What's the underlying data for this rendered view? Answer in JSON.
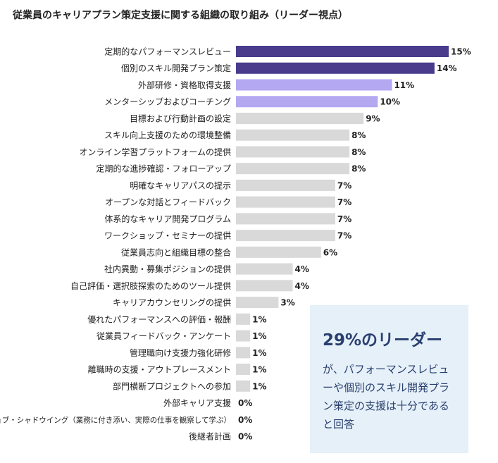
{
  "chart_data": {
    "type": "bar",
    "orientation": "horizontal",
    "title": "従業員のキャリアプラン策定支援に関する組織の取り組み（リーダー視点）",
    "categories": [
      "定期的なパフォーマンスレビュー",
      "個別のスキル開発プラン策定",
      "外部研修・資格取得支援",
      "メンターシップおよびコーチング",
      "目標および行動計画の設定",
      "スキル向上支援のための環境整備",
      "オンライン学習プラットフォームの提供",
      "定期的な進捗確認・フォローアップ",
      "明確なキャリアパスの提示",
      "オープンな対話とフィードバック",
      "体系的なキャリア開発プログラム",
      "ワークショップ・セミナーの提供",
      "従業員志向と組織目標の整合",
      "社内異動・募集ポジションの提供",
      "自己評価・選択肢探索のためのツール提供",
      "キャリアカウンセリングの提供",
      "優れたパフォーマンスへの評価・報酬",
      "従業員フィードバック・アンケート",
      "管理職向け支援力強化研修",
      "離職時の支援・アウトプレースメント",
      "部門横断プロジェクトへの参加",
      "外部キャリア支援",
      "ジョブ・シャドウイング（業務に付き添い、実際の仕事を観察して学ぶ）",
      "後継者計画"
    ],
    "values": [
      15,
      14,
      11,
      10,
      9,
      8,
      8,
      8,
      7,
      7,
      7,
      7,
      6,
      4,
      4,
      3,
      1,
      1,
      1,
      1,
      1,
      0,
      0,
      0
    ],
    "value_labels": [
      "15%",
      "14%",
      "11%",
      "10%",
      "9%",
      "8%",
      "8%",
      "8%",
      "7%",
      "7%",
      "7%",
      "7%",
      "6%",
      "4%",
      "4%",
      "3%",
      "1%",
      "1%",
      "1%",
      "1%",
      "1%",
      "0%",
      "0%",
      "0%"
    ],
    "colors": [
      "#4a3b8c",
      "#4a3b8c",
      "#b4a9f1",
      "#b4a9f1",
      "#d9d9d9",
      "#d9d9d9",
      "#d9d9d9",
      "#d9d9d9",
      "#d9d9d9",
      "#d9d9d9",
      "#d9d9d9",
      "#d9d9d9",
      "#d9d9d9",
      "#d9d9d9",
      "#d9d9d9",
      "#d9d9d9",
      "#d9d9d9",
      "#d9d9d9",
      "#d9d9d9",
      "#d9d9d9",
      "#d9d9d9",
      "#d9d9d9",
      "#d9d9d9",
      "#d9d9d9"
    ],
    "annotation": {
      "title": "29%のリーダー",
      "text": "が、パフォーマンスレビューや個別のスキル開発プラン策定の支援は十分であると回答"
    }
  }
}
